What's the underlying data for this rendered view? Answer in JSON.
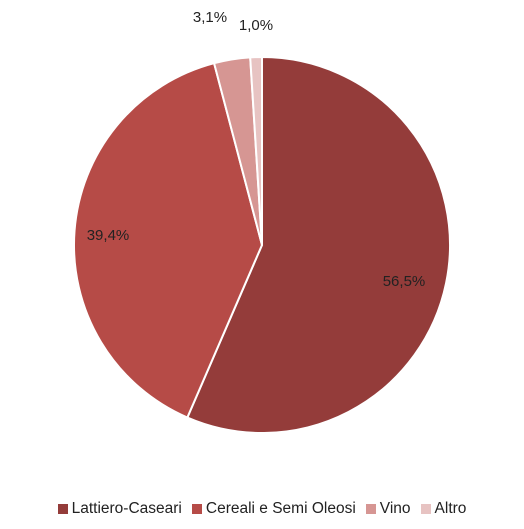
{
  "chart_data": {
    "type": "pie",
    "title": "",
    "start_angle_deg": 0,
    "direction": "clockwise",
    "categories": [
      "Lattiero-Caseari",
      "Cereali e Semi Oleosi",
      "Vino",
      "Altro"
    ],
    "values": [
      56.5,
      39.4,
      3.1,
      1.0
    ],
    "labels": [
      "56,5%",
      "39,4%",
      "3,1%",
      "1,0%"
    ],
    "colors": [
      "#943c3a",
      "#b64b47",
      "#d69693",
      "#e7c3c2"
    ],
    "legend_position": "bottom"
  }
}
